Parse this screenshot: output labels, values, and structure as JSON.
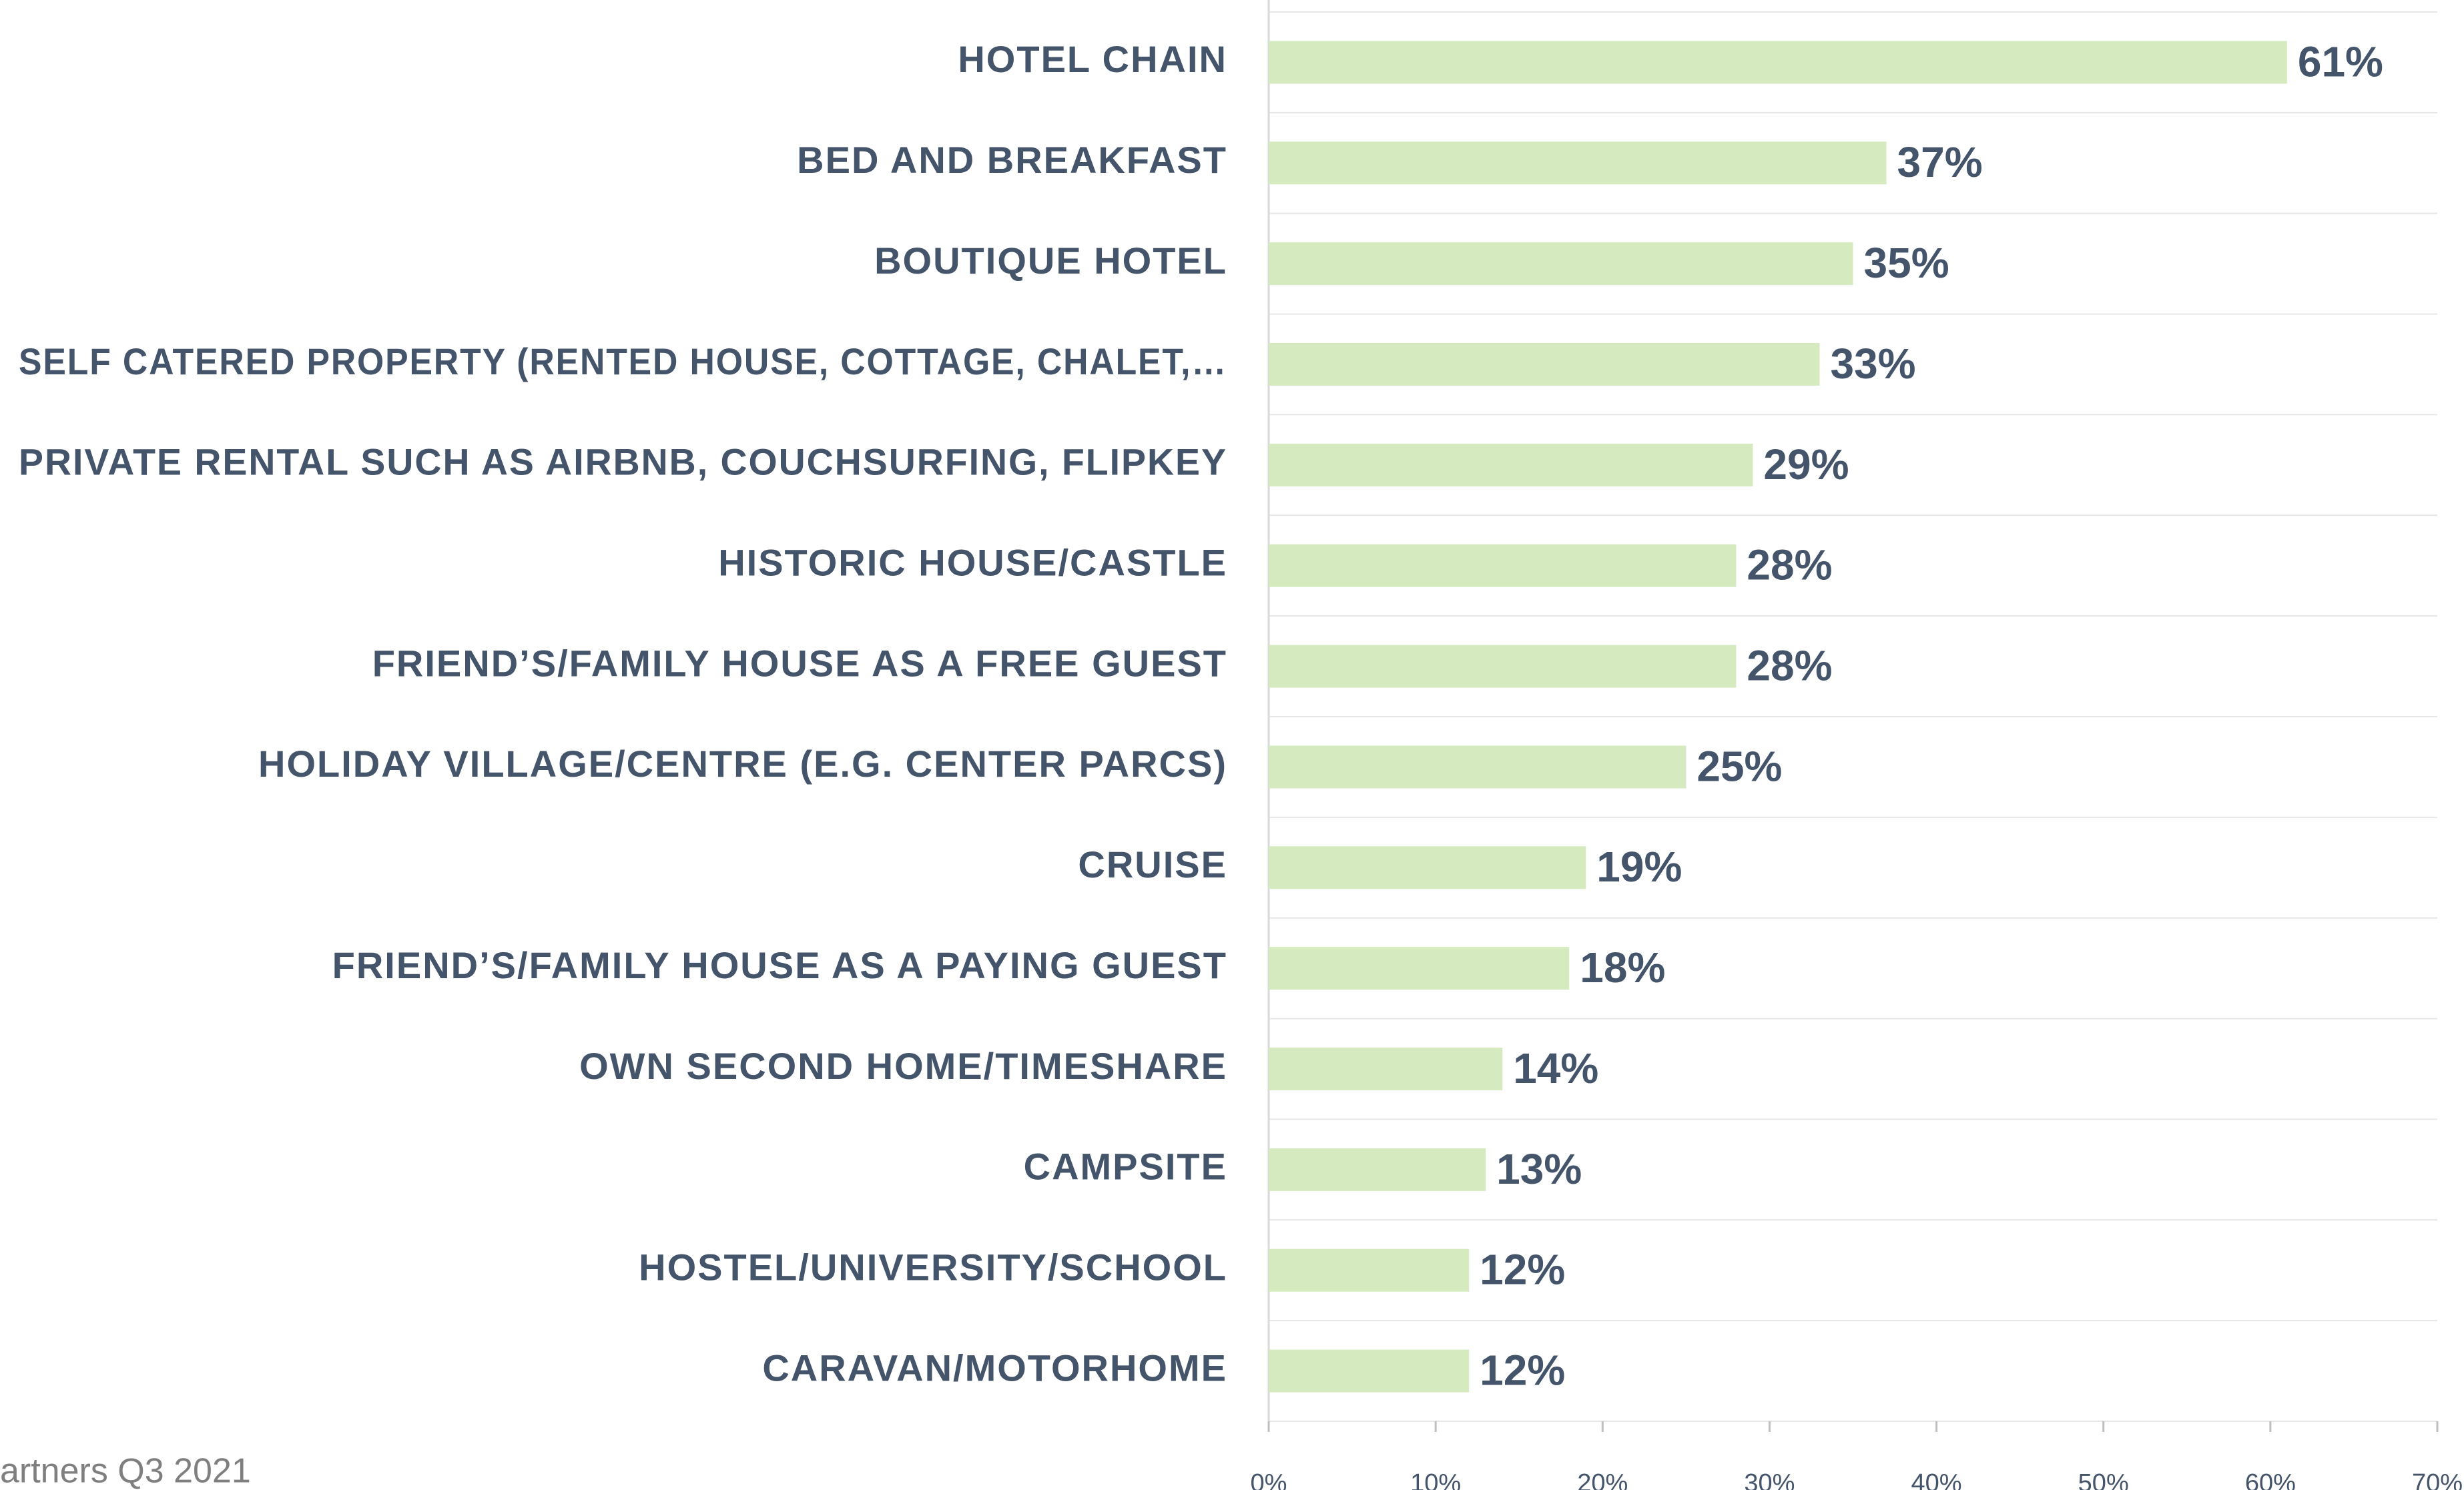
{
  "chart_data": {
    "type": "bar",
    "orientation": "horizontal",
    "categories": [
      "HOTEL CHAIN",
      "BED AND BREAKFAST",
      "BOUTIQUE HOTEL",
      "SELF CATERED PROPERTY (RENTED HOUSE, COTTAGE, CHALET,…",
      "PRIVATE RENTAL SUCH AS AIRBNB, COUCHSURFING, FLIPKEY",
      "HISTORIC HOUSE/CASTLE",
      "FRIEND’S/FAMILY HOUSE AS A FREE GUEST",
      "HOLIDAY VILLAGE/CENTRE (E.G. CENTER PARCS)",
      "CRUISE",
      "FRIEND’S/FAMILY HOUSE AS A PAYING GUEST",
      "OWN SECOND HOME/TIMESHARE",
      "CAMPSITE",
      "HOSTEL/UNIVERSITY/SCHOOL",
      "CARAVAN/MOTORHOME"
    ],
    "values": [
      61,
      37,
      35,
      33,
      29,
      28,
      28,
      25,
      19,
      18,
      14,
      13,
      12,
      12
    ],
    "value_labels": [
      "61%",
      "37%",
      "35%",
      "33%",
      "29%",
      "28%",
      "28%",
      "25%",
      "19%",
      "18%",
      "14%",
      "13%",
      "12%",
      "12%"
    ],
    "color": "#d5ebbf",
    "xlim": [
      0,
      70
    ],
    "xticks": [
      {
        "value": 0,
        "label": "0%"
      },
      {
        "value": 10,
        "label": "10%"
      },
      {
        "value": 20,
        "label": "20%"
      },
      {
        "value": 30,
        "label": "30%"
      },
      {
        "value": 40,
        "label": "40%"
      },
      {
        "value": 50,
        "label": "50%"
      },
      {
        "value": 60,
        "label": "60%"
      },
      {
        "value": 70,
        "label": "70%"
      }
    ],
    "footnote": "artners  Q3 2021"
  }
}
